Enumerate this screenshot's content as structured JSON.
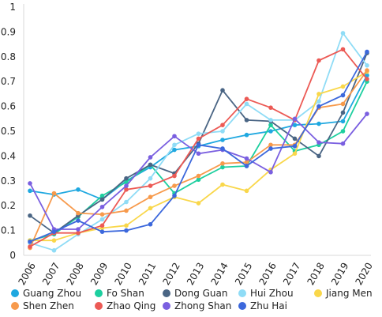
{
  "chart_data": {
    "type": "line",
    "title": "",
    "xlabel": "",
    "ylabel": "",
    "ylim": [
      0,
      1
    ],
    "yticks": [
      "0",
      "0.1",
      "0.2",
      "0.3",
      "0.4",
      "0.5",
      "0.6",
      "0.7",
      "0.8",
      "0.9",
      "1"
    ],
    "grid": false,
    "legend_position": "bottom",
    "categories": [
      "2006",
      "2007",
      "2008",
      "2009",
      "2010",
      "2011",
      "2012",
      "2013",
      "2014",
      "2015",
      "2016",
      "2017",
      "2018",
      "2019",
      "2020"
    ],
    "series": [
      {
        "name": "Guang Zhou",
        "color": "#1fa8e0",
        "values": [
          0.26,
          0.245,
          0.265,
          0.225,
          0.3,
          0.355,
          0.425,
          0.44,
          0.465,
          0.485,
          0.5,
          0.525,
          0.53,
          0.54,
          0.725
        ]
      },
      {
        "name": "Fo Shan",
        "color": "#1dcf9f",
        "values": [
          0.06,
          0.085,
          0.155,
          0.24,
          0.295,
          0.365,
          0.25,
          0.305,
          0.355,
          0.36,
          0.525,
          0.42,
          0.445,
          0.5,
          0.7
        ]
      },
      {
        "name": "Dong Guan",
        "color": "#4a6584",
        "values": [
          0.16,
          0.09,
          0.16,
          0.225,
          0.31,
          0.365,
          0.33,
          0.45,
          0.665,
          0.545,
          0.54,
          0.47,
          0.4,
          0.575,
          0.815
        ]
      },
      {
        "name": "Hui Zhou",
        "color": "#8fdcf6",
        "values": [
          0.05,
          0.02,
          0.085,
          0.145,
          0.215,
          0.31,
          0.445,
          0.49,
          0.5,
          0.61,
          0.545,
          0.545,
          0.62,
          0.895,
          0.765
        ]
      },
      {
        "name": "Jiang Men",
        "color": "#f9d74a",
        "values": [
          0.06,
          0.06,
          0.09,
          0.11,
          0.12,
          0.19,
          0.235,
          0.21,
          0.285,
          0.26,
          0.345,
          0.41,
          0.65,
          0.68,
          0.74
        ]
      },
      {
        "name": "Shen Zhen",
        "color": "#f79a4c",
        "values": [
          0.03,
          0.25,
          0.17,
          0.165,
          0.18,
          0.235,
          0.28,
          0.32,
          0.37,
          0.375,
          0.445,
          0.445,
          0.595,
          0.61,
          0.745
        ]
      },
      {
        "name": "Zhao Qing",
        "color": "#ec5a55",
        "values": [
          0.035,
          0.09,
          0.09,
          0.12,
          0.265,
          0.28,
          0.32,
          0.47,
          0.525,
          0.63,
          0.595,
          0.545,
          0.785,
          0.83,
          0.71
        ]
      },
      {
        "name": "Zhong Shan",
        "color": "#7a5fe0",
        "values": [
          0.29,
          0.105,
          0.105,
          0.195,
          0.28,
          0.395,
          0.48,
          0.41,
          0.425,
          0.39,
          0.335,
          0.55,
          0.455,
          0.45,
          0.57
        ]
      },
      {
        "name": "Zhu Hai",
        "color": "#3c68dc",
        "values": [
          0.055,
          0.095,
          0.14,
          0.095,
          0.1,
          0.125,
          0.24,
          0.445,
          0.43,
          0.36,
          0.43,
          0.44,
          0.6,
          0.645,
          0.82
        ]
      }
    ]
  }
}
